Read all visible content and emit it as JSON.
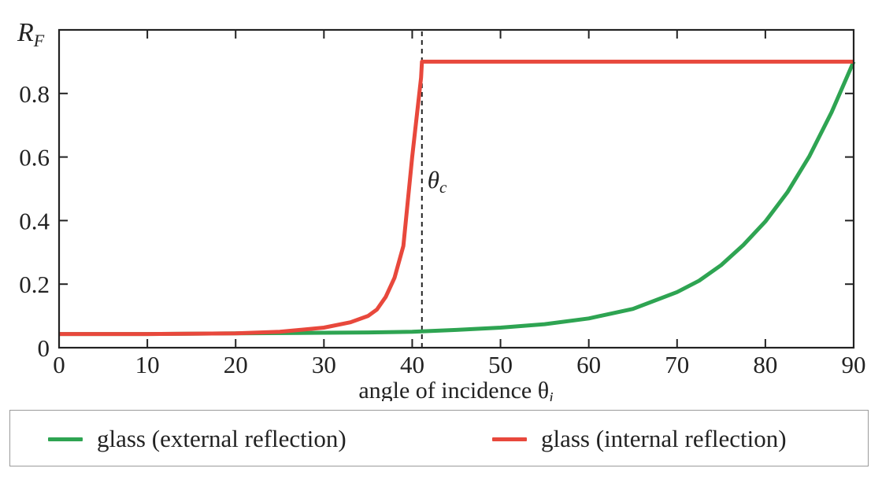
{
  "chart_data": {
    "type": "line",
    "xlabel": "angle of incidence θ",
    "xlabel_sub": "i",
    "ylabel": "R",
    "ylabel_sub": "F",
    "xlim": [
      0,
      90
    ],
    "ylim": [
      0,
      1
    ],
    "xticks": [
      0,
      10,
      20,
      30,
      40,
      50,
      60,
      70,
      80,
      90
    ],
    "yticks": [
      0,
      0.2,
      0.4,
      0.6,
      0.8
    ],
    "ytick_labels": [
      "0",
      "0.2",
      "0.4",
      "0.6",
      "0.8"
    ],
    "grid": false,
    "legend_position": "bottom",
    "annotations": [
      {
        "text": "θ",
        "sub": "c",
        "x": 41.1,
        "y": 0.53,
        "kind": "vline-dashed",
        "line_from": 0,
        "line_to": 1
      }
    ],
    "series": [
      {
        "name": "glass (external reflection)",
        "color": "#2ea452",
        "x": [
          0,
          10,
          20,
          30,
          35,
          40,
          45,
          50,
          55,
          60,
          65,
          70,
          72.5,
          75,
          77.5,
          80,
          82.5,
          85,
          87.5,
          90
        ],
        "y": [
          0.043,
          0.043,
          0.045,
          0.047,
          0.048,
          0.05,
          0.056,
          0.063,
          0.074,
          0.092,
          0.122,
          0.175,
          0.211,
          0.26,
          0.323,
          0.397,
          0.489,
          0.603,
          0.741,
          0.9
        ]
      },
      {
        "name": "glass (internal reflection)",
        "color": "#e8483c",
        "x": [
          0,
          10,
          20,
          25,
          30,
          33,
          35,
          36,
          37,
          38,
          39,
          40,
          41,
          41.1,
          90
        ],
        "y": [
          0.043,
          0.043,
          0.045,
          0.05,
          0.063,
          0.08,
          0.1,
          0.12,
          0.16,
          0.22,
          0.32,
          0.6,
          0.85,
          0.9,
          0.9
        ]
      }
    ]
  }
}
